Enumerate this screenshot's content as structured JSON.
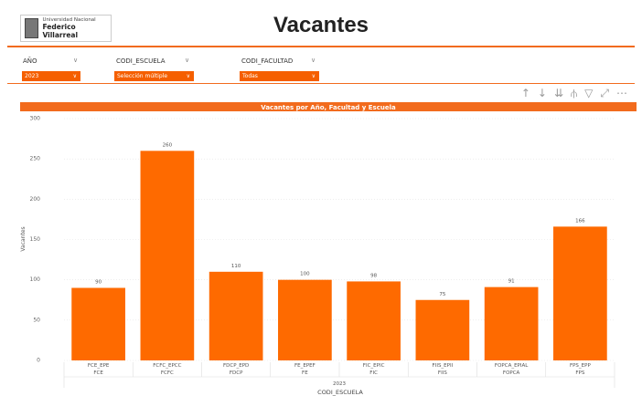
{
  "header": {
    "logo_line1": "Universidad Nacional",
    "logo_line2": "Federico Villarreal",
    "title": "Vacantes"
  },
  "filters": [
    {
      "label": "AÑO",
      "value": "2023"
    },
    {
      "label": "CODI_ESCUELA",
      "value": "Selección múltiple"
    },
    {
      "label": "CODI_FACULTAD",
      "value": "Todas"
    }
  ],
  "chart_data": {
    "type": "bar",
    "title": "Vacantes por Año, Facultad y Escuela",
    "categories": [
      "FCE_EPE",
      "FCFC_EPCC",
      "FDCP_EPD",
      "FE_EPEF",
      "FIC_EPIC",
      "FIIS_EPII",
      "FOPCA_EPIAL",
      "FPS_EPP"
    ],
    "parent_categories": [
      "FCE",
      "FCFC",
      "FDCP",
      "FE",
      "FIC",
      "FIIS",
      "FOPCA",
      "FPS"
    ],
    "group": "2023",
    "x_label": "CODI_ESCUELA",
    "y_label": "Vacantes",
    "values": [
      90,
      260,
      110,
      100,
      98,
      75,
      91,
      166
    ],
    "color": "#fe6a00",
    "ylim": [
      0,
      300
    ],
    "yticks": [
      0,
      50,
      100,
      150,
      200,
      250,
      300
    ],
    "grid": true
  }
}
